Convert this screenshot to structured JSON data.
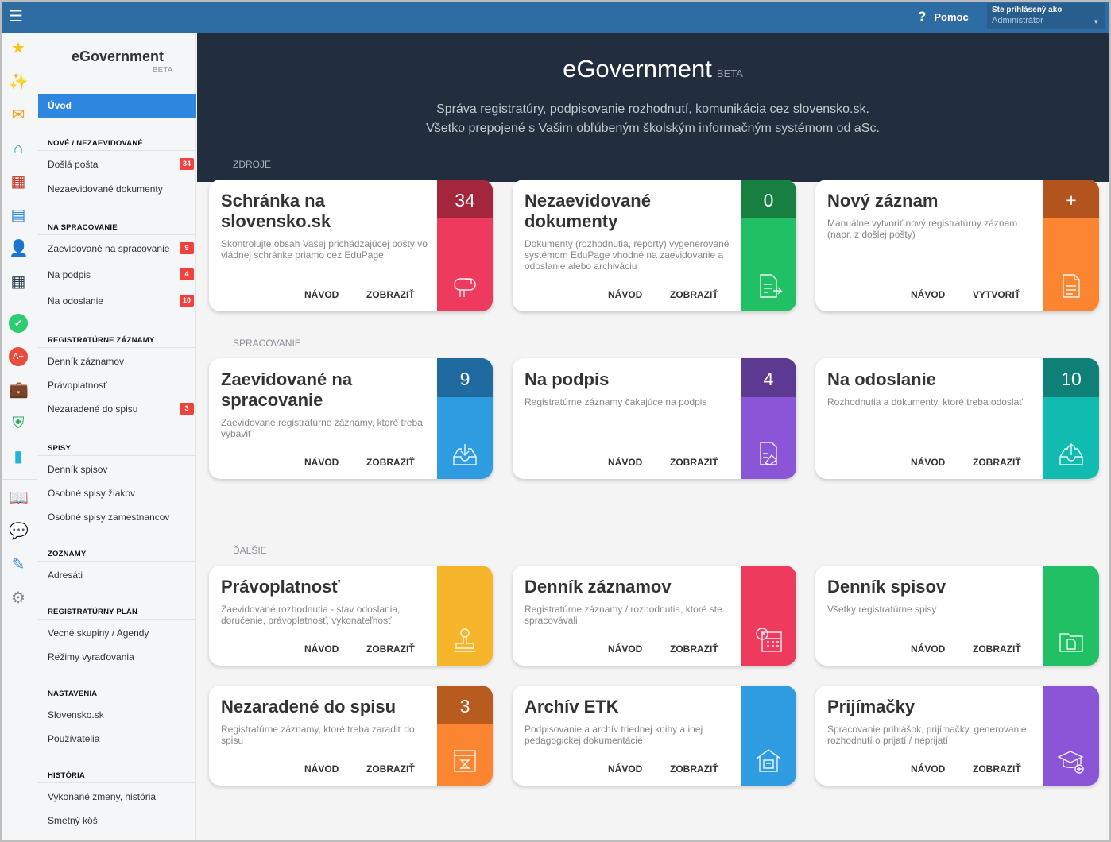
{
  "topbar": {
    "menu_icon": "hamburger-icon",
    "help_label": "Pomoc",
    "help_icon": "?",
    "user_label": "Ste prihlásený ako",
    "user_name": "Administrátor"
  },
  "rail": [
    {
      "name": "star",
      "g": "★",
      "c": "#f5c518"
    },
    {
      "name": "magic-wand",
      "g": "✨",
      "c": "#e74c3c"
    },
    {
      "name": "envelope",
      "g": "✉",
      "c": "#f39c12"
    },
    {
      "name": "home",
      "g": "⌂",
      "c": "#16a085"
    },
    {
      "name": "calendar-grid",
      "g": "▦",
      "c": "#c0392b"
    },
    {
      "name": "notebook",
      "g": "▤",
      "c": "#2e86de"
    },
    {
      "name": "user",
      "g": "👤",
      "c": "#e74c3c"
    },
    {
      "name": "schedule",
      "g": "▦",
      "c": "#2c3e50"
    },
    {
      "name": "check-circle",
      "g": "✔",
      "c": "#2ecc71"
    },
    {
      "name": "grade",
      "g": "A+",
      "c": "#e74c3c"
    },
    {
      "name": "briefcase",
      "g": "💼",
      "c": "#2e86de"
    },
    {
      "name": "shield",
      "g": "⛨",
      "c": "#27ae60"
    },
    {
      "name": "bar-chart",
      "g": "▮",
      "c": "#1fb5d6"
    },
    {
      "name": "book",
      "g": "📖",
      "c": "#2e86de"
    },
    {
      "name": "chat",
      "g": "💬",
      "c": "#c0392b"
    },
    {
      "name": "pencil",
      "g": "✎",
      "c": "#3d8fe0"
    },
    {
      "name": "gear",
      "g": "⚙",
      "c": "#888"
    }
  ],
  "sidebar": {
    "logo": "eGovernment",
    "beta": "BETA",
    "home": "Úvod",
    "sections": [
      {
        "title": "NOVÉ / NEZAEVIDOVANÉ",
        "items": [
          {
            "label": "Došlá pošta",
            "badge": "34"
          },
          {
            "label": "Nezaevidované dokumenty"
          }
        ]
      },
      {
        "title": "NA SPRACOVANIE",
        "items": [
          {
            "label": "Zaevidované na spracovanie",
            "badge": "9"
          },
          {
            "label": "Na podpis",
            "badge": "4"
          },
          {
            "label": "Na odoslanie",
            "badge": "10"
          }
        ]
      },
      {
        "title": "REGISTRATÚRNE ZÁZNAMY",
        "items": [
          {
            "label": "Denník záznamov"
          },
          {
            "label": "Právoplatnosť"
          },
          {
            "label": "Nezaradené do spisu",
            "badge": "3"
          }
        ]
      },
      {
        "title": "SPISY",
        "items": [
          {
            "label": "Denník spisov"
          },
          {
            "label": "Osobné spisy žiakov"
          },
          {
            "label": "Osobné spisy zamestnancov"
          }
        ]
      },
      {
        "title": "ZOZNAMY",
        "items": [
          {
            "label": "Adresáti"
          }
        ]
      },
      {
        "title": "REGISTRATÚRNY PLÁN",
        "items": [
          {
            "label": "Vecné skupiny / Agendy"
          },
          {
            "label": "Režimy vyraďovania"
          }
        ]
      },
      {
        "title": "NASTAVENIA",
        "items": [
          {
            "label": "Slovensko.sk"
          },
          {
            "label": "Používatelia"
          }
        ]
      },
      {
        "title": "HISTÓRIA",
        "items": [
          {
            "label": "Vykonané zmeny, história"
          },
          {
            "label": "Smetný kôš"
          }
        ]
      }
    ]
  },
  "hero": {
    "title": "eGovernment",
    "beta": "BETA",
    "line1": "Správa registratúry, podpisovanie rozhodnutí, komunikácia cez slovensko.sk.",
    "line2": "Všetko prepojené s Vašim obľúbeným školským informačným systémom od aSc."
  },
  "sections": [
    "ZDROJE",
    "SPRACOVANIE",
    "ĎALŠIE"
  ],
  "cards": [
    {
      "title": "Schránka na slovensko.sk",
      "desc": "Skontrolujte obsah Vašej prichádzajúcej pošty vo vládnej schránke priamo cez EduPage",
      "count": "34",
      "b1": "NÁVOD",
      "b2": "ZOBRAZIŤ",
      "color": "#ee3a5c",
      "dark": "#a3263c",
      "icon": "mailbox"
    },
    {
      "title": "Nezaevidované dokumenty",
      "desc": "Dokumenty (rozhodnutia, reporty) vygenerované systémom EduPage vhodné na zaevidovanie a odoslanie alebo archiváciu",
      "count": "0",
      "b1": "NÁVOD",
      "b2": "ZOBRAZIŤ",
      "color": "#21c064",
      "dark": "#177f40",
      "icon": "document-arrow"
    },
    {
      "title": "Nový záznam",
      "desc": "Manuálne vytvoriť nový registratúrny záznam (napr. z došlej pošty)",
      "count": "+",
      "b1": "NÁVOD",
      "b2": "VYTVORIŤ",
      "color": "#fb8530",
      "dark": "#b3541f",
      "icon": "document"
    },
    {
      "title": "Zaevidované na spracovanie",
      "desc": "Zaevidované registratúrne záznamy, ktoré treba vybaviť",
      "count": "9",
      "b1": "NÁVOD",
      "b2": "ZOBRAZIŤ",
      "color": "#2f9be0",
      "dark": "#1f6a9f",
      "icon": "inbox-download"
    },
    {
      "title": "Na podpis",
      "desc": "Registratúrne záznamy čakajúce na podpis",
      "count": "4",
      "b1": "NÁVOD",
      "b2": "ZOBRAZIŤ",
      "color": "#8a55d6",
      "dark": "#5d3a91",
      "icon": "document-sign"
    },
    {
      "title": "Na odoslanie",
      "desc": "Rozhodnutia a dokumenty, ktoré treba odoslať",
      "count": "10",
      "b1": "NÁVOD",
      "b2": "ZOBRAZIŤ",
      "color": "#12bbb0",
      "dark": "#0f8078",
      "icon": "inbox-upload"
    },
    {
      "title": "Právoplatnosť",
      "desc": "Zaevidované rozhodnutia - stav odoslania, doručenie, právoplatnosť, vykonateľnosť",
      "b1": "NÁVOD",
      "b2": "ZOBRAZIŤ",
      "color": "#f7b52c",
      "icon": "stamp"
    },
    {
      "title": "Denník záznamov",
      "desc": "Registratúrne záznamy / rozhodnutia, ktoré ste spracovávali",
      "b1": "NÁVOD",
      "b2": "ZOBRAZIŤ",
      "color": "#ee3a5c",
      "icon": "calendar-clock"
    },
    {
      "title": "Denník spisov",
      "desc": "Všetky registratúrne spisy",
      "b1": "NÁVOD",
      "b2": "ZOBRAZIŤ",
      "color": "#21c064",
      "icon": "folder"
    },
    {
      "title": "Nezaradené do spisu",
      "desc": "Registratúrne záznamy, ktoré treba zaradiť do spisu",
      "count": "3",
      "b1": "NÁVOD",
      "b2": "ZOBRAZIŤ",
      "color": "#fb8530",
      "dark": "#b75b1e",
      "icon": "archive-box"
    },
    {
      "title": "Archív ETK",
      "desc": "Podpisovanie a archív triednej knihy a inej pedagogickej dokumentácie",
      "b1": "NÁVOD",
      "b2": "ZOBRAZIŤ",
      "color": "#2f9be0",
      "icon": "archive-house"
    },
    {
      "title": "Prijímačky",
      "desc": "Spracovanie prihlášok, prijímačky, generovanie rozhodnutí o prijatí / neprijatí",
      "b1": "NÁVOD",
      "b2": "ZOBRAZIŤ",
      "color": "#8a55d6",
      "icon": "graduation-cap"
    }
  ]
}
